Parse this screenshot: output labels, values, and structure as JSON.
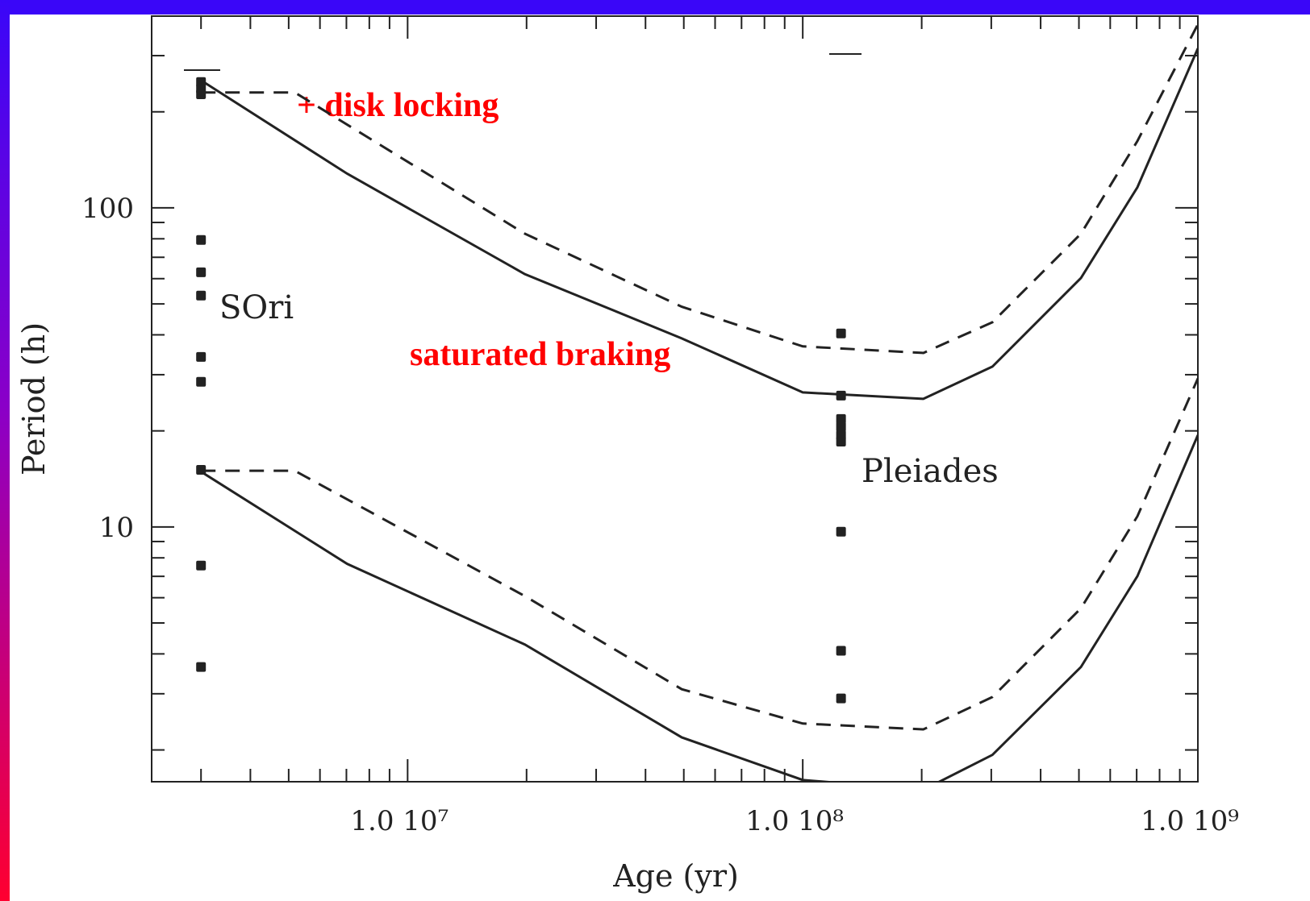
{
  "chart_data": {
    "type": "line",
    "xlabel": "Age (yr)",
    "ylabel": "Period (h)",
    "annotations": [
      "SOri",
      "Pleiades",
      "+ disk locking",
      "saturated braking"
    ],
    "xscale": "log",
    "yscale": "log",
    "xlim": [
      2250000,
      1000000000
    ],
    "ylim": [
      1.59,
      399
    ],
    "xticks": [
      {
        "value": 10000000,
        "label": "1.0 10⁷"
      },
      {
        "value": 100000000,
        "label": "1.0 10⁸"
      },
      {
        "value": 1000000000,
        "label": "1.0 10⁹"
      }
    ],
    "yticks": [
      10,
      100
    ],
    "xminorticks": [
      3000000,
      4000000,
      5000000,
      6000000,
      7000000,
      8000000,
      9000000,
      20000000,
      30000000,
      40000000,
      50000000,
      60000000,
      70000000,
      80000000,
      90000000,
      200000000,
      300000000,
      400000000,
      500000000,
      600000000,
      700000000,
      800000000,
      900000000
    ],
    "yminorticks": [
      2,
      3,
      4,
      5,
      6,
      7,
      8,
      9,
      20,
      30,
      40,
      50,
      60,
      70,
      80,
      90,
      200,
      300
    ],
    "color": "#222222",
    "series": [
      {
        "style": "solid",
        "x": [
          3000000,
          7030000,
          19800000,
          49400000,
          100000000,
          202000000,
          302000000,
          506000000,
          703000000,
          1000000000
        ],
        "values": [
          251,
          128,
          62,
          39,
          26.4,
          25.2,
          31.8,
          60.3,
          116,
          316
        ]
      },
      {
        "style": "dashed",
        "x": [
          3000000,
          5180000,
          19800000,
          49400000,
          100000000,
          202000000,
          302000000,
          506000000,
          703000000,
          1000000000
        ],
        "values": [
          230,
          230,
          83,
          49,
          36.8,
          35.1,
          43.8,
          83,
          162,
          376
        ]
      },
      {
        "style": "solid",
        "x": [
          3000000,
          7030000,
          19800000,
          49400000,
          100000000,
          202000000,
          302000000,
          506000000,
          703000000,
          1000000000
        ],
        "values": [
          14.9,
          7.66,
          4.28,
          2.19,
          1.61,
          1.5,
          1.93,
          3.64,
          7.01,
          19.4
        ]
      },
      {
        "style": "dashed",
        "x": [
          3000000,
          5180000,
          19800000,
          49400000,
          100000000,
          202000000,
          302000000,
          506000000,
          703000000,
          1000000000
        ],
        "values": [
          15,
          15,
          6.07,
          3.1,
          2.42,
          2.32,
          2.93,
          5.56,
          10.8,
          29.2
        ]
      }
    ],
    "points": {
      "x": [
        3000000,
        3000000,
        3000000,
        3000000,
        3000000,
        3000000,
        3000000,
        3000000,
        3000000,
        3000000,
        3000000,
        125000000,
        125000000,
        125000000,
        125000000,
        125000000,
        125000000,
        125000000,
        125000000,
        125000000
      ],
      "values": [
        248,
        236,
        227,
        79.3,
        62.8,
        53.1,
        34.1,
        28.5,
        15.1,
        7.57,
        3.64,
        40.4,
        25.8,
        21.8,
        20.6,
        19.4,
        18.5,
        9.66,
        4.09,
        2.9
      ]
    }
  }
}
